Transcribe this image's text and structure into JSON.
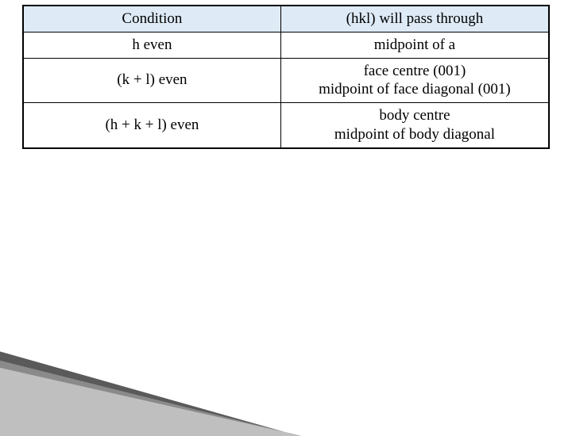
{
  "table": {
    "header": {
      "left": "Condition",
      "right": "(hkl) will pass through"
    },
    "rows": [
      {
        "left": "h even",
        "right": "midpoint of a"
      },
      {
        "left": "(k + l) even",
        "right": "face centre (001)\nmidpoint of face diagonal (001)"
      },
      {
        "left": "(h + k + l) even",
        "right": "body centre\nmidpoint of body diagonal"
      }
    ],
    "style": {
      "header_bg": "#deeaf6",
      "border_color": "#000000",
      "font_family": "Times New Roman",
      "font_size_pt": 14,
      "text_color": "#000000"
    }
  },
  "wedge": {
    "colors": {
      "top_stripe": "#5a5a5a",
      "mid_stripe": "#8a8a8a",
      "main": "#bfbfbf"
    }
  }
}
